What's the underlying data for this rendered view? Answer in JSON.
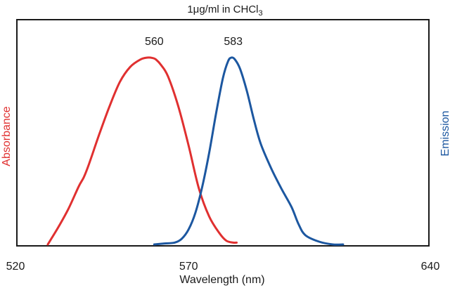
{
  "chart_data": {
    "type": "line",
    "title": {
      "main": "1μg/ml in CHCl",
      "subscript": "3"
    },
    "xlabel": "Wavelength (nm)",
    "ylabel_left": "Absorbance",
    "ylabel_right": "Emission",
    "xlim": [
      520,
      640
    ],
    "ylim": [
      0,
      1
    ],
    "x_ticks": [
      {
        "value": 520,
        "label": "520"
      },
      {
        "value": 570,
        "label": "570"
      },
      {
        "value": 640,
        "label": "640"
      }
    ],
    "grid": false,
    "colors": {
      "absorbance": "#e03030",
      "emission": "#1c57a0",
      "frame": "#1a1a1a",
      "text": "#1a1a1a"
    },
    "series": [
      {
        "name": "Absorbance",
        "axis": "left",
        "peak_label": "560",
        "peak_x": 560,
        "x": [
          529.0,
          532.0,
          535.0,
          538.0,
          539.5,
          541.0,
          544.0,
          547.0,
          550.0,
          553.0,
          556.0,
          558.0,
          559.5,
          560.5,
          562.0,
          564.0,
          567.0,
          570.0,
          573.0,
          576.0,
          579.0,
          581.0,
          583.0,
          584.0
        ],
        "y": [
          0.0,
          0.09,
          0.19,
          0.31,
          0.36,
          0.43,
          0.59,
          0.74,
          0.87,
          0.95,
          0.99,
          1.0,
          0.998,
          0.99,
          0.96,
          0.9,
          0.74,
          0.53,
          0.3,
          0.15,
          0.06,
          0.02,
          0.01,
          0.01
        ]
      },
      {
        "name": "Emission",
        "axis": "right",
        "peak_label": "583",
        "peak_x": 583,
        "x": [
          560.0,
          563.0,
          566.0,
          568.0,
          570.0,
          572.0,
          574.0,
          576.0,
          578.0,
          580.0,
          581.5,
          582.5,
          583.5,
          585.0,
          587.0,
          589.0,
          591.0,
          594.0,
          597.0,
          600.0,
          602.0,
          604.0,
          608.0,
          612.0,
          615.0
        ],
        "y": [
          0.0,
          0.005,
          0.01,
          0.03,
          0.08,
          0.17,
          0.31,
          0.49,
          0.7,
          0.89,
          0.98,
          1.0,
          0.99,
          0.94,
          0.82,
          0.67,
          0.54,
          0.41,
          0.3,
          0.2,
          0.11,
          0.05,
          0.015,
          0.0,
          0.0
        ]
      }
    ]
  }
}
